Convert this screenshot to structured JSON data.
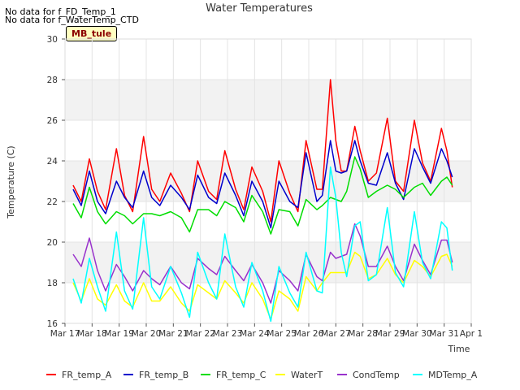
{
  "notes": [
    "No data for f_FD_Temp_1",
    "No data for f_WaterTemp_CTD"
  ],
  "station_label": "MB_tule",
  "chart_data": {
    "type": "line",
    "title": "Water Temperatures",
    "xlabel": "Time",
    "ylabel": "Temperature (C)",
    "xlim": [
      17,
      32
    ],
    "ylim": [
      16,
      30
    ],
    "x_ticks": [
      {
        "v": 17,
        "label": "Mar 17"
      },
      {
        "v": 18,
        "label": "Mar 18"
      },
      {
        "v": 19,
        "label": "Mar 19"
      },
      {
        "v": 20,
        "label": "Mar 20"
      },
      {
        "v": 21,
        "label": "Mar 21"
      },
      {
        "v": 22,
        "label": "Mar 22"
      },
      {
        "v": 23,
        "label": "Mar 23"
      },
      {
        "v": 24,
        "label": "Mar 24"
      },
      {
        "v": 25,
        "label": "Mar 25"
      },
      {
        "v": 26,
        "label": "Mar 26"
      },
      {
        "v": 27,
        "label": "Mar 27"
      },
      {
        "v": 28,
        "label": "Mar 28"
      },
      {
        "v": 29,
        "label": "Mar 29"
      },
      {
        "v": 30,
        "label": "Mar 30"
      },
      {
        "v": 31,
        "label": "Mar 31"
      },
      {
        "v": 32,
        "label": "Apr 1"
      }
    ],
    "y_ticks": [
      16,
      18,
      20,
      22,
      24,
      26,
      28,
      30
    ],
    "bands": [
      [
        18,
        20
      ],
      [
        22,
        24
      ],
      [
        26,
        28
      ]
    ],
    "grid": true,
    "legend_position": "bottom",
    "series": [
      {
        "name": "FR_temp_A",
        "color": "#ff0000",
        "x": [
          17.3,
          17.6,
          17.9,
          18.2,
          18.5,
          18.9,
          19.2,
          19.5,
          19.9,
          20.2,
          20.5,
          20.9,
          21.3,
          21.6,
          21.9,
          22.3,
          22.6,
          22.9,
          23.3,
          23.6,
          23.9,
          24.3,
          24.6,
          24.9,
          25.3,
          25.6,
          25.9,
          26.3,
          26.5,
          26.8,
          27.0,
          27.2,
          27.4,
          27.7,
          27.9,
          28.2,
          28.5,
          28.9,
          29.2,
          29.5,
          29.9,
          30.2,
          30.5,
          30.9,
          31.1,
          31.3
        ],
        "y": [
          22.8,
          22.0,
          24.1,
          22.5,
          21.6,
          24.6,
          22.3,
          21.5,
          25.2,
          22.6,
          22.0,
          23.4,
          22.4,
          21.5,
          24.0,
          22.5,
          22.1,
          24.5,
          22.6,
          21.6,
          23.7,
          22.5,
          21.0,
          24.0,
          22.4,
          21.5,
          25.0,
          22.6,
          22.6,
          28.0,
          25.0,
          23.5,
          23.5,
          25.7,
          24.5,
          23.0,
          23.4,
          26.1,
          23.0,
          22.5,
          26.0,
          23.9,
          23.0,
          25.6,
          24.5,
          22.7
        ]
      },
      {
        "name": "FR_temp_B",
        "color": "#0000cc",
        "x": [
          17.3,
          17.6,
          17.9,
          18.2,
          18.5,
          18.9,
          19.2,
          19.5,
          19.9,
          20.2,
          20.5,
          20.9,
          21.3,
          21.6,
          21.9,
          22.3,
          22.6,
          22.9,
          23.3,
          23.6,
          23.9,
          24.3,
          24.6,
          24.9,
          25.3,
          25.6,
          25.9,
          26.3,
          26.5,
          26.8,
          27.0,
          27.2,
          27.4,
          27.7,
          27.9,
          28.2,
          28.5,
          28.9,
          29.2,
          29.5,
          29.9,
          30.2,
          30.5,
          30.9,
          31.1,
          31.3
        ],
        "y": [
          22.6,
          21.8,
          23.5,
          22.0,
          21.4,
          23.0,
          22.2,
          21.7,
          23.5,
          22.2,
          21.8,
          22.8,
          22.2,
          21.6,
          23.3,
          22.2,
          21.9,
          23.4,
          22.3,
          21.3,
          23.0,
          22.0,
          20.7,
          23.0,
          22.0,
          21.7,
          24.4,
          22.0,
          22.3,
          25.0,
          23.5,
          23.4,
          23.5,
          25.0,
          24.0,
          22.9,
          22.8,
          24.4,
          22.9,
          22.1,
          24.6,
          23.7,
          22.9,
          24.6,
          24.0,
          23.2
        ]
      },
      {
        "name": "FR_temp_C",
        "color": "#00dd00",
        "x": [
          17.3,
          17.6,
          17.9,
          18.2,
          18.5,
          18.9,
          19.2,
          19.5,
          19.9,
          20.2,
          20.5,
          20.9,
          21.3,
          21.6,
          21.9,
          22.3,
          22.6,
          22.9,
          23.3,
          23.6,
          23.9,
          24.3,
          24.6,
          24.9,
          25.3,
          25.6,
          25.9,
          26.3,
          26.5,
          26.8,
          27.0,
          27.2,
          27.4,
          27.7,
          27.9,
          28.2,
          28.5,
          28.9,
          29.2,
          29.5,
          29.9,
          30.2,
          30.5,
          30.9,
          31.1,
          31.3
        ],
        "y": [
          21.9,
          21.2,
          22.7,
          21.5,
          20.9,
          21.5,
          21.3,
          20.9,
          21.4,
          21.4,
          21.3,
          21.5,
          21.2,
          20.5,
          21.6,
          21.6,
          21.3,
          22.0,
          21.7,
          21.0,
          22.3,
          21.5,
          20.4,
          21.6,
          21.5,
          20.8,
          22.1,
          21.6,
          21.8,
          22.2,
          22.1,
          22.0,
          22.5,
          24.2,
          23.6,
          22.2,
          22.5,
          22.8,
          22.6,
          22.2,
          22.7,
          22.9,
          22.3,
          23.0,
          23.2,
          22.8
        ]
      },
      {
        "name": "WaterT",
        "color": "#ffff00",
        "x": [
          17.3,
          17.6,
          17.9,
          18.2,
          18.5,
          18.9,
          19.2,
          19.5,
          19.9,
          20.2,
          20.5,
          20.9,
          21.3,
          21.6,
          21.9,
          22.3,
          22.6,
          22.9,
          23.3,
          23.6,
          23.9,
          24.3,
          24.6,
          24.9,
          25.3,
          25.6,
          25.9,
          26.3,
          26.5,
          26.8,
          27.0,
          27.2,
          27.4,
          27.7,
          27.9,
          28.2,
          28.5,
          28.9,
          29.2,
          29.5,
          29.9,
          30.2,
          30.5,
          30.9,
          31.1,
          31.3
        ],
        "y": [
          18.0,
          17.1,
          18.2,
          17.2,
          16.9,
          17.9,
          17.1,
          16.8,
          18.0,
          17.1,
          17.1,
          17.8,
          17.0,
          16.6,
          17.9,
          17.5,
          17.2,
          18.1,
          17.5,
          17.0,
          18.0,
          17.2,
          16.2,
          17.6,
          17.2,
          16.6,
          18.3,
          17.6,
          18.0,
          18.5,
          18.5,
          18.5,
          18.5,
          19.5,
          19.3,
          18.2,
          18.4,
          19.2,
          18.4,
          18.0,
          19.1,
          18.8,
          18.3,
          19.3,
          19.4,
          18.8
        ]
      },
      {
        "name": "CondTemp",
        "color": "#9932cc",
        "x": [
          17.3,
          17.6,
          17.9,
          18.2,
          18.5,
          18.9,
          19.2,
          19.5,
          19.9,
          20.2,
          20.5,
          20.9,
          21.3,
          21.6,
          21.9,
          22.3,
          22.6,
          22.9,
          23.3,
          23.6,
          23.9,
          24.3,
          24.6,
          24.9,
          25.3,
          25.6,
          25.9,
          26.3,
          26.5,
          26.8,
          27.0,
          27.2,
          27.4,
          27.7,
          27.9,
          28.2,
          28.5,
          28.9,
          29.2,
          29.5,
          29.9,
          30.2,
          30.5,
          30.9,
          31.1,
          31.3
        ],
        "y": [
          19.4,
          18.8,
          20.2,
          18.6,
          17.6,
          18.9,
          18.3,
          17.6,
          18.6,
          18.2,
          17.9,
          18.8,
          18.0,
          17.7,
          19.2,
          18.7,
          18.4,
          19.3,
          18.6,
          18.1,
          18.9,
          18.0,
          17.0,
          18.6,
          18.1,
          17.6,
          19.4,
          18.3,
          18.1,
          19.5,
          19.2,
          19.3,
          19.4,
          20.9,
          20.3,
          18.8,
          18.8,
          19.8,
          18.8,
          18.1,
          19.9,
          19.1,
          18.4,
          20.1,
          20.1,
          19.0
        ]
      },
      {
        "name": "MDTemp_A",
        "color": "#00ffff",
        "x": [
          17.3,
          17.6,
          17.9,
          18.2,
          18.5,
          18.9,
          19.2,
          19.5,
          19.9,
          20.2,
          20.5,
          20.9,
          21.3,
          21.6,
          21.9,
          22.3,
          22.6,
          22.9,
          23.3,
          23.6,
          23.9,
          24.3,
          24.6,
          24.9,
          25.3,
          25.6,
          25.9,
          26.3,
          26.5,
          26.8,
          27.0,
          27.2,
          27.4,
          27.7,
          27.9,
          28.2,
          28.5,
          28.9,
          29.2,
          29.5,
          29.9,
          30.2,
          30.5,
          30.9,
          31.1,
          31.3
        ],
        "y": [
          18.2,
          17.0,
          19.2,
          17.8,
          16.6,
          20.5,
          17.6,
          16.7,
          21.2,
          17.8,
          17.2,
          18.8,
          17.5,
          16.3,
          19.5,
          18.0,
          17.2,
          20.4,
          17.8,
          16.8,
          19.0,
          17.6,
          16.1,
          18.8,
          17.5,
          16.8,
          19.5,
          17.6,
          17.5,
          23.7,
          22.2,
          19.5,
          18.3,
          20.8,
          21.0,
          18.1,
          18.4,
          21.7,
          18.5,
          17.8,
          21.5,
          19.0,
          18.2,
          21.0,
          20.7,
          18.6
        ]
      }
    ]
  }
}
